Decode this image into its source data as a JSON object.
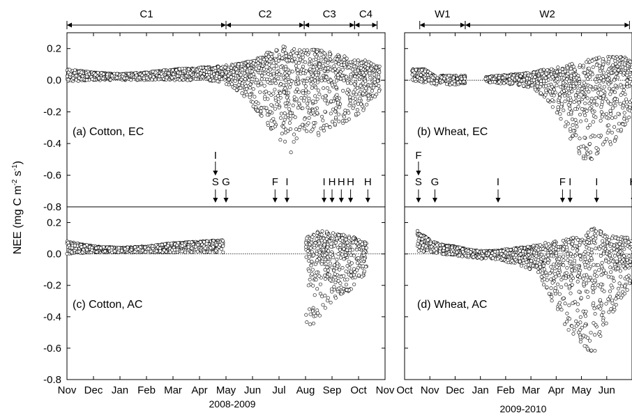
{
  "chart_data": {
    "type": "scatter",
    "ylabel": "NEE (mg C m",
    "ylabel_sup1": "-2",
    "ylabel_mid": " s",
    "ylabel_sup2": "-1",
    "ylabel_end": ")",
    "ylim_top": [
      -0.8,
      0.3
    ],
    "ylim_bottom": [
      -0.8,
      0.3
    ],
    "yticks_top": [
      "0.2",
      "0.0",
      "-0.2",
      "-0.4",
      "-0.6",
      "-0.8"
    ],
    "yticks_bottom": [
      "0.2",
      "0.0",
      "-0.2",
      "-0.4",
      "-0.6",
      "-0.8"
    ],
    "xlabel_left": "2008-2009",
    "xlabel_right": "2009-2010",
    "xticks_left": [
      "Nov",
      "Dec",
      "Jan",
      "Feb",
      "Mar",
      "Apr",
      "May",
      "Jun",
      "Jul",
      "Aug",
      "Sep",
      "Oct",
      "Nov"
    ],
    "xticks_right": [
      "Oct",
      "Nov",
      "Dec",
      "Jan",
      "Feb",
      "Mar",
      "Apr",
      "May",
      "Jun"
    ],
    "stages_left": [
      {
        "label": "C1",
        "from": 0.0,
        "to": 6.0
      },
      {
        "label": "C2",
        "from": 6.0,
        "to": 8.95
      },
      {
        "label": "C3",
        "from": 8.95,
        "to": 10.85
      },
      {
        "label": "C4",
        "from": 10.85,
        "to": 11.7
      }
    ],
    "stages_right": [
      {
        "label": "W1",
        "from": 0.6,
        "to": 2.4
      },
      {
        "label": "W2",
        "from": 2.4,
        "to": 8.9
      }
    ],
    "events_left": [
      {
        "label": "I",
        "month": 5.6,
        "tier": 2
      },
      {
        "label": "S",
        "month": 5.6,
        "tier": 1
      },
      {
        "label": "G",
        "month": 6.0,
        "tier": 1
      },
      {
        "label": "F",
        "month": 7.85,
        "tier": 1
      },
      {
        "label": "I",
        "month": 8.3,
        "tier": 1
      },
      {
        "label": "I",
        "month": 9.7,
        "tier": 1
      },
      {
        "label": "H",
        "month": 10.0,
        "tier": 1
      },
      {
        "label": "H",
        "month": 10.35,
        "tier": 1
      },
      {
        "label": "H",
        "month": 10.7,
        "tier": 1
      },
      {
        "label": "H",
        "month": 11.35,
        "tier": 1
      }
    ],
    "events_right": [
      {
        "label": "F",
        "month": 0.55,
        "tier": 2
      },
      {
        "label": "S",
        "month": 0.55,
        "tier": 1
      },
      {
        "label": "G",
        "month": 1.2,
        "tier": 1
      },
      {
        "label": "I",
        "month": 3.7,
        "tier": 1
      },
      {
        "label": "F",
        "month": 6.25,
        "tier": 1
      },
      {
        "label": "I",
        "month": 6.55,
        "tier": 1
      },
      {
        "label": "I",
        "month": 7.6,
        "tier": 1
      },
      {
        "label": "H",
        "month": 9.05,
        "tier": 1
      }
    ],
    "panels": [
      {
        "id": "a",
        "label": "(a) Cotton, EC"
      },
      {
        "id": "b",
        "label": "(b) Wheat, EC"
      },
      {
        "id": "c",
        "label": "(c) Cotton, AC"
      },
      {
        "id": "d",
        "label": "(d) Wheat, AC"
      }
    ],
    "series": [
      {
        "panel": "a",
        "envelope_month": [
          0,
          1,
          2,
          3,
          4,
          5,
          5.8,
          6.3,
          6.8,
          7.3,
          7.8,
          8.1,
          8.4,
          8.8,
          9.1,
          9.5,
          9.9,
          10.3,
          10.7,
          11.1,
          11.5,
          11.8
        ],
        "envelope_max": [
          0.07,
          0.05,
          0.04,
          0.05,
          0.07,
          0.08,
          0.09,
          0.1,
          0.12,
          0.15,
          0.2,
          0.22,
          0.2,
          0.2,
          0.2,
          0.19,
          0.18,
          0.16,
          0.14,
          0.13,
          0.12,
          0.1
        ],
        "envelope_min": [
          -0.01,
          0.0,
          0.0,
          0.0,
          0.0,
          0.0,
          -0.01,
          -0.05,
          -0.12,
          -0.22,
          -0.35,
          -0.45,
          -0.5,
          -0.3,
          -0.33,
          -0.35,
          -0.3,
          -0.28,
          -0.25,
          -0.2,
          -0.15,
          -0.08
        ]
      },
      {
        "panel": "b",
        "envelope_month": [
          0.3,
          0.8,
          1.3,
          1.4,
          1.9,
          2.4,
          3.2,
          3.7,
          4.5,
          5.0,
          5.5,
          6.0,
          6.5,
          7.0,
          7.5,
          8.0,
          8.5,
          9.0
        ],
        "envelope_max": [
          0.07,
          0.07,
          0.02,
          0.03,
          0.03,
          0.03,
          0.02,
          0.03,
          0.04,
          0.05,
          0.07,
          0.08,
          0.1,
          0.12,
          0.14,
          0.15,
          0.15,
          0.14
        ],
        "envelope_min": [
          0.0,
          -0.02,
          -0.03,
          -0.02,
          -0.03,
          -0.02,
          -0.01,
          -0.02,
          -0.03,
          -0.05,
          -0.1,
          -0.2,
          -0.35,
          -0.5,
          -0.5,
          -0.45,
          -0.35,
          -0.2
        ]
      },
      {
        "panel": "c",
        "envelope_month": [
          0,
          1,
          2,
          3,
          4,
          5,
          5.9,
          9.0,
          9.5,
          10.0,
          10.5,
          11.0,
          11.3
        ],
        "envelope_max": [
          0.08,
          0.05,
          0.04,
          0.05,
          0.07,
          0.08,
          0.09,
          0.12,
          0.15,
          0.14,
          0.12,
          0.1,
          0.08
        ],
        "envelope_min": [
          0.0,
          0.01,
          0.01,
          0.01,
          0.01,
          0.01,
          0.01,
          -0.52,
          -0.4,
          -0.3,
          -0.25,
          -0.2,
          -0.1
        ]
      },
      {
        "panel": "d",
        "envelope_month": [
          0.5,
          1.0,
          1.5,
          2.0,
          2.5,
          3.0,
          3.5,
          4.0,
          4.5,
          5.0,
          5.5,
          6.0,
          6.5,
          7.0,
          7.5,
          8.0,
          8.5,
          9.0
        ],
        "envelope_max": [
          0.15,
          0.09,
          0.06,
          0.05,
          0.03,
          0.02,
          0.02,
          0.03,
          0.04,
          0.05,
          0.07,
          0.08,
          0.1,
          0.12,
          0.17,
          0.12,
          0.11,
          0.1
        ],
        "envelope_min": [
          0.02,
          0.01,
          0.0,
          -0.01,
          -0.02,
          -0.03,
          -0.03,
          -0.05,
          -0.07,
          -0.1,
          -0.2,
          -0.35,
          -0.5,
          -0.6,
          -0.63,
          -0.45,
          -0.3,
          -0.2
        ]
      }
    ]
  }
}
